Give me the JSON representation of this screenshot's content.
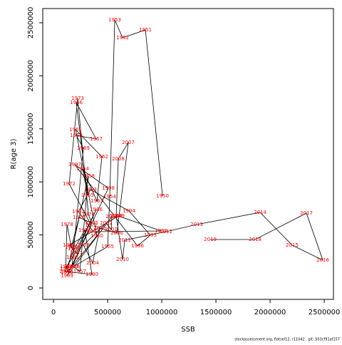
{
  "chart_data": {
    "type": "path-scatter",
    "x_label": "SSB",
    "y_label": "R(age 3)",
    "footnote": "stockassessment.org, flatsel12, r11042 , git: 503cf91af157",
    "point_labels": [
      "1950",
      "1951",
      "1952",
      "1953",
      "1954",
      "1955",
      "1956",
      "1957",
      "1958",
      "1959",
      "1960",
      "1961",
      "1962",
      "1963",
      "1964",
      "1965",
      "1966",
      "1967",
      "1968",
      "1969",
      "1970",
      "1971",
      "1972",
      "1973",
      "1974",
      "1975",
      "1976",
      "1977",
      "1978",
      "1979",
      "1980",
      "1981",
      "1982",
      "1983",
      "1984",
      "1985",
      "1986",
      "1987",
      "1988",
      "1989",
      "1990",
      "1991",
      "1992",
      "1993",
      "1994",
      "1995",
      "1996",
      "1997",
      "1998",
      "1999",
      "2000",
      "2001",
      "2002",
      "2003",
      "2004",
      "2005",
      "2006",
      "2007",
      "2008",
      "2009",
      "2010",
      "2011",
      "2012",
      "2013",
      "2014",
      "2015",
      "2016",
      "2017",
      "2018",
      "2019"
    ],
    "x": [
      1006600,
      848700,
      638200,
      565800,
      519700,
      500000,
      184200,
      243400,
      322400,
      125000,
      401300,
      204000,
      447400,
      401300,
      269700,
      315800,
      210500,
      394700,
      210500,
      276300,
      171100,
      348700,
      144700,
      223700,
      322400,
      355300,
      236800,
      164500,
      125000,
      111800,
      355300,
      289500,
      190800,
      118400,
      118400,
      177600,
      394700,
      210500,
      144700,
      598700,
      993400,
      368400,
      230300,
      342100,
      697400,
      894700,
      776300,
      197400,
      506600,
      125000,
      539500,
      532900,
      486800,
      276300,
      361800,
      427600,
      585500,
      690800,
      598700,
      578900,
      638200,
      657900,
      1039500,
      1322400,
      1907900,
      2204000,
      2486800,
      2335500,
      1861800,
      1447400
    ],
    "values": [
      866900,
      2432600,
      2358700,
      2526700,
      860200,
      389800,
      201600,
      154600,
      1055000,
      147800,
      490600,
      1491800,
      1236500,
      819800,
      1122200,
      873600,
      1747200,
      1404500,
      1438100,
      1317100,
      201600,
      591400,
      981100,
      1787500,
      692200,
      611500,
      665300,
      383000,
      598100,
      154600,
      127700,
      544300,
      369600,
      181400,
      201600,
      289000,
      739200,
      329300,
      403200,
      678700,
      537600,
      530900,
      719000,
      927400,
      725800,
      497300,
      396500,
      1162600,
      940800,
      114200,
      672000,
      551000,
      611500,
      403200,
      235200,
      564500,
      517400,
      1370900,
      1216300,
      678700,
      268800,
      450200,
      530900,
      598100,
      712300,
      403200,
      262100,
      705600,
      457000,
      457000
    ],
    "label_color": "#ff0000",
    "line_color": "#000000",
    "xlim": [
      -99000,
      2585000
    ],
    "ylim": [
      -107500,
      2634000
    ],
    "xticks": [
      0,
      500000,
      1000000,
      1500000,
      2000000,
      2500000
    ],
    "yticks": [
      0,
      500000,
      1000000,
      1500000,
      2000000,
      2500000
    ]
  }
}
